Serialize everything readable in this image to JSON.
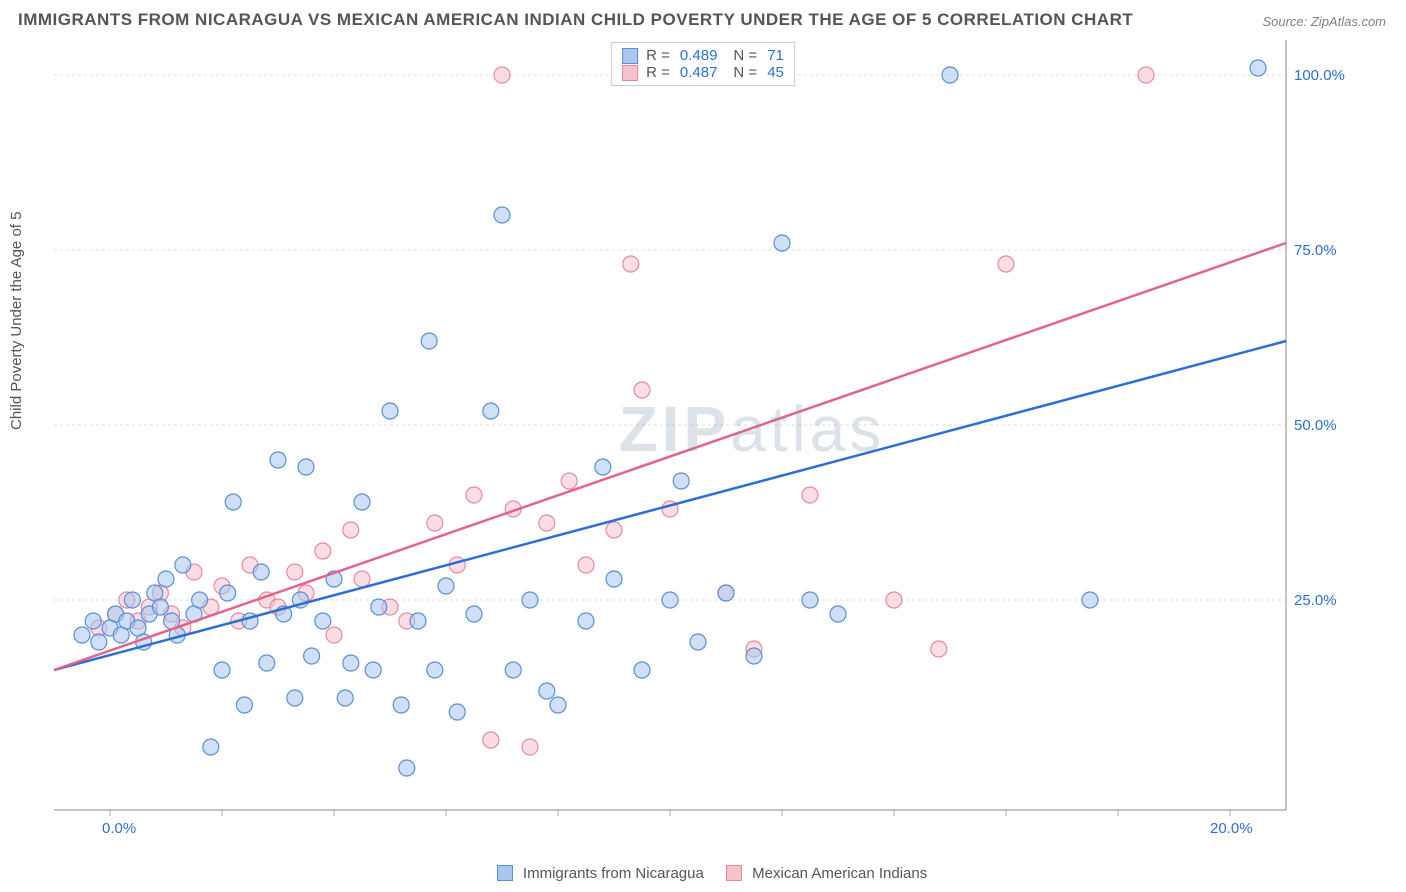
{
  "title": "IMMIGRANTS FROM NICARAGUA VS MEXICAN AMERICAN INDIAN CHILD POVERTY UNDER THE AGE OF 5 CORRELATION CHART",
  "source": "Source: ZipAtlas.com",
  "watermark": "ZIPatlas",
  "ylabel": "Child Poverty Under the Age of 5",
  "chart": {
    "type": "scatter",
    "background_color": "#ffffff",
    "grid_color": "#dddddd",
    "axis_color": "#888888",
    "tick_color": "#aaaaaa",
    "label_fontsize": 15,
    "tick_label_color": "#2b6fd6",
    "xlim": [
      -1,
      21
    ],
    "ylim": [
      -5,
      105
    ],
    "x_ticks": [
      0,
      2,
      4,
      6,
      8,
      10,
      12,
      14,
      16,
      18,
      20
    ],
    "x_tick_labels": {
      "0": "0.0%",
      "20": "20.0%"
    },
    "y_ticks": [
      25,
      50,
      75,
      100
    ],
    "y_tick_labels": {
      "25": "25.0%",
      "50": "50.0%",
      "75": "75.0%",
      "100": "100.0%"
    },
    "marker_radius": 8,
    "marker_opacity": 0.55,
    "series": [
      {
        "name": "Immigrants from Nicaragua",
        "color_fill": "#a8c6ee",
        "color_stroke": "#5a8fd6",
        "line_color": "#2b6fd6",
        "line_width": 2.5,
        "R": "0.489",
        "N": "71",
        "regression": {
          "x0": -1,
          "y0": 15,
          "x1": 21,
          "y1": 62
        },
        "points": [
          [
            -0.5,
            20
          ],
          [
            -0.3,
            22
          ],
          [
            -0.2,
            19
          ],
          [
            0,
            21
          ],
          [
            0.1,
            23
          ],
          [
            0.2,
            20
          ],
          [
            0.3,
            22
          ],
          [
            0.4,
            25
          ],
          [
            0.5,
            21
          ],
          [
            0.6,
            19
          ],
          [
            0.7,
            23
          ],
          [
            0.8,
            26
          ],
          [
            0.9,
            24
          ],
          [
            1.0,
            28
          ],
          [
            1.1,
            22
          ],
          [
            1.2,
            20
          ],
          [
            1.3,
            30
          ],
          [
            1.5,
            23
          ],
          [
            1.6,
            25
          ],
          [
            1.8,
            4
          ],
          [
            2.0,
            15
          ],
          [
            2.1,
            26
          ],
          [
            2.2,
            39
          ],
          [
            2.4,
            10
          ],
          [
            2.5,
            22
          ],
          [
            2.7,
            29
          ],
          [
            2.8,
            16
          ],
          [
            3.0,
            45
          ],
          [
            3.1,
            23
          ],
          [
            3.3,
            11
          ],
          [
            3.4,
            25
          ],
          [
            3.5,
            44
          ],
          [
            3.6,
            17
          ],
          [
            3.8,
            22
          ],
          [
            4.0,
            28
          ],
          [
            4.2,
            11
          ],
          [
            4.3,
            16
          ],
          [
            4.5,
            39
          ],
          [
            4.7,
            15
          ],
          [
            4.8,
            24
          ],
          [
            5.0,
            52
          ],
          [
            5.2,
            10
          ],
          [
            5.3,
            1
          ],
          [
            5.5,
            22
          ],
          [
            5.7,
            62
          ],
          [
            5.8,
            15
          ],
          [
            6.0,
            27
          ],
          [
            6.2,
            9
          ],
          [
            6.5,
            23
          ],
          [
            6.8,
            52
          ],
          [
            7.0,
            80
          ],
          [
            7.2,
            15
          ],
          [
            7.5,
            25
          ],
          [
            7.8,
            12
          ],
          [
            8.0,
            10
          ],
          [
            8.5,
            22
          ],
          [
            8.8,
            44
          ],
          [
            9.0,
            28
          ],
          [
            9.5,
            15
          ],
          [
            10.0,
            25
          ],
          [
            10.2,
            42
          ],
          [
            10.5,
            19
          ],
          [
            10.8,
            100
          ],
          [
            11.0,
            26
          ],
          [
            11.5,
            17
          ],
          [
            12.0,
            76
          ],
          [
            12.5,
            25
          ],
          [
            13.0,
            23
          ],
          [
            15.0,
            100
          ],
          [
            17.5,
            25
          ],
          [
            20.5,
            101
          ]
        ]
      },
      {
        "name": "Mexican American Indians",
        "color_fill": "#f5c2cc",
        "color_stroke": "#e68aa0",
        "line_color": "#e5638a",
        "line_width": 2.5,
        "R": "0.487",
        "N": "45",
        "regression": {
          "x0": -1,
          "y0": 15,
          "x1": 21,
          "y1": 76
        },
        "points": [
          [
            -0.2,
            21
          ],
          [
            0.1,
            23
          ],
          [
            0.3,
            25
          ],
          [
            0.5,
            22
          ],
          [
            0.7,
            24
          ],
          [
            0.9,
            26
          ],
          [
            1.1,
            23
          ],
          [
            1.3,
            21
          ],
          [
            1.5,
            29
          ],
          [
            1.8,
            24
          ],
          [
            2.0,
            27
          ],
          [
            2.3,
            22
          ],
          [
            2.5,
            30
          ],
          [
            2.8,
            25
          ],
          [
            3.0,
            24
          ],
          [
            3.3,
            29
          ],
          [
            3.5,
            26
          ],
          [
            3.8,
            32
          ],
          [
            4.0,
            20
          ],
          [
            4.3,
            35
          ],
          [
            4.5,
            28
          ],
          [
            5.0,
            24
          ],
          [
            5.3,
            22
          ],
          [
            5.8,
            36
          ],
          [
            6.2,
            30
          ],
          [
            6.5,
            40
          ],
          [
            6.8,
            5
          ],
          [
            7.0,
            100
          ],
          [
            7.2,
            38
          ],
          [
            7.5,
            4
          ],
          [
            7.8,
            36
          ],
          [
            8.2,
            42
          ],
          [
            8.5,
            30
          ],
          [
            9.0,
            35
          ],
          [
            9.3,
            73
          ],
          [
            9.5,
            55
          ],
          [
            10.0,
            38
          ],
          [
            10.5,
            100
          ],
          [
            11.0,
            26
          ],
          [
            11.5,
            18
          ],
          [
            12.5,
            40
          ],
          [
            14.0,
            25
          ],
          [
            14.8,
            18
          ],
          [
            16.0,
            73
          ],
          [
            18.5,
            100
          ]
        ]
      }
    ],
    "legend_bottom": [
      {
        "label": "Immigrants from Nicaragua",
        "fill": "#a8c6ee",
        "stroke": "#5a8fd6"
      },
      {
        "label": "Mexican American Indians",
        "fill": "#f5c2cc",
        "stroke": "#e68aa0"
      }
    ]
  }
}
